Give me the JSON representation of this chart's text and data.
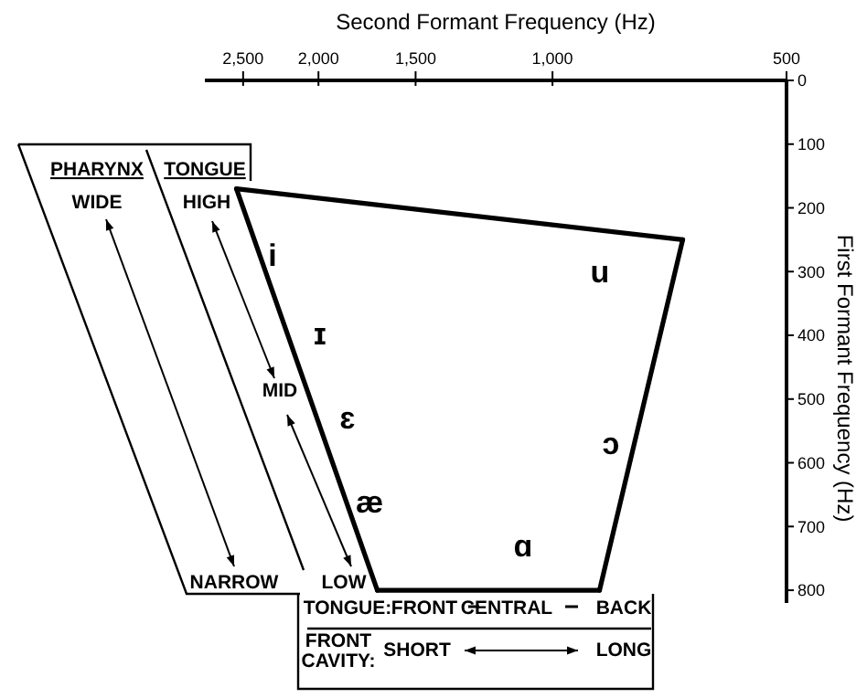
{
  "chart_data": {
    "type": "line",
    "xlabel": "Second Formant Frequency (Hz)",
    "ylabel": "First Formant Frequency (Hz)",
    "log": "x",
    "xlim": [
      2800,
      500
    ],
    "xticks": [
      {
        "value": 2500,
        "label": "2,500"
      },
      {
        "value": 2000,
        "label": "2,000"
      },
      {
        "value": 1500,
        "label": "1,500"
      },
      {
        "value": 1000,
        "label": "1,000"
      },
      500
    ],
    "ylim": [
      820,
      0
    ],
    "yticks": [
      0,
      100,
      200,
      300,
      400,
      500,
      600,
      700,
      800
    ],
    "marker": "none",
    "color": "#000000",
    "series": [
      {
        "x": [
          2550,
          680
        ],
        "values": [
          170,
          250
        ]
      },
      {
        "x": [
          680,
          870
        ],
        "values": [
          250,
          800
        ]
      },
      {
        "x": [
          870,
          1680
        ],
        "values": [
          800,
          800
        ]
      },
      {
        "x": [
          1680,
          2550
        ],
        "values": [
          800,
          170
        ]
      }
    ],
    "annotations": [
      "PHARYNX",
      "TONGUE",
      "WIDE",
      "HIGH",
      "MID",
      "NARROW",
      "LOW",
      "TONGUE:",
      "FRONT",
      "CENTRAL",
      "BACK",
      "FRONT CAVITY:",
      "SHORT",
      "LONG",
      "i",
      "ɪ",
      "ɛ",
      "æ",
      "ɑ",
      "ɔ",
      "u"
    ]
  }
}
